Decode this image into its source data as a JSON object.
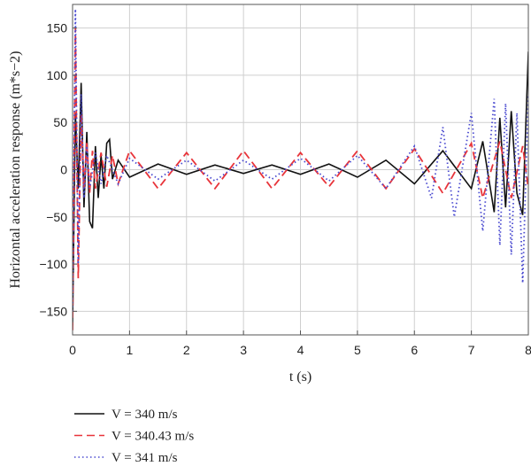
{
  "chart_data": {
    "type": "line",
    "title": "",
    "xlabel": "t (s)",
    "ylabel": "Horizontal acceleration response (m*s−2)",
    "xlim": [
      0,
      8
    ],
    "ylim": [
      -175,
      175
    ],
    "x_ticks": [
      "0",
      "1",
      "2",
      "3",
      "4",
      "5",
      "6",
      "7",
      "8"
    ],
    "y_ticks": [
      "−150",
      "−100",
      "−50",
      "0",
      "50",
      "100",
      "150"
    ],
    "y_tick_values": [
      -150,
      -100,
      -50,
      0,
      50,
      100,
      150
    ],
    "grid": true,
    "legend_position": "bottom-left, below plot",
    "series": [
      {
        "name": "V = 340 m/s",
        "color": "#111111",
        "style": "solid",
        "x": [
          0,
          0.05,
          0.1,
          0.15,
          0.2,
          0.25,
          0.3,
          0.35,
          0.4,
          0.45,
          0.5,
          0.55,
          0.6,
          0.65,
          0.7,
          0.8,
          1.0,
          1.5,
          2.0,
          2.5,
          3.0,
          3.5,
          4.0,
          4.5,
          5.0,
          5.5,
          6.0,
          6.5,
          7.0,
          7.2,
          7.4,
          7.5,
          7.6,
          7.7,
          7.8,
          7.9,
          8.0
        ],
        "values": [
          -165,
          60,
          -20,
          92,
          -40,
          40,
          -55,
          -62,
          25,
          -30,
          15,
          -20,
          28,
          32,
          -10,
          10,
          -8,
          6,
          -5,
          5,
          -4,
          5,
          -5,
          6,
          -8,
          10,
          -15,
          20,
          -20,
          30,
          -45,
          55,
          -40,
          62,
          -25,
          -48,
          125
        ]
      },
      {
        "name": "V = 340.43 m/s",
        "color": "#e8343a",
        "style": "dashed",
        "x": [
          0,
          0.05,
          0.1,
          0.15,
          0.2,
          0.25,
          0.3,
          0.35,
          0.4,
          0.5,
          0.6,
          0.7,
          0.8,
          1.0,
          1.5,
          2.0,
          2.5,
          3.0,
          3.5,
          4.0,
          4.5,
          5.0,
          5.5,
          6.0,
          6.5,
          7.0,
          7.2,
          7.5,
          7.7,
          7.9,
          8.0
        ],
        "values": [
          -170,
          150,
          -115,
          60,
          -20,
          30,
          -25,
          20,
          -20,
          18,
          -18,
          15,
          -15,
          20,
          -20,
          18,
          -20,
          20,
          -20,
          18,
          -18,
          20,
          -20,
          22,
          -25,
          28,
          -30,
          30,
          -30,
          25,
          -20
        ]
      },
      {
        "name": "V = 341 m/s",
        "color": "#4a4ad0",
        "style": "dotted",
        "x": [
          0,
          0.05,
          0.1,
          0.15,
          0.2,
          0.25,
          0.3,
          0.4,
          0.5,
          0.6,
          0.8,
          1.0,
          1.5,
          2.0,
          2.5,
          3.0,
          3.5,
          4.0,
          4.5,
          5.0,
          5.5,
          6.0,
          6.3,
          6.5,
          6.7,
          7.0,
          7.2,
          7.4,
          7.5,
          7.6,
          7.7,
          7.8,
          7.9,
          8.0
        ],
        "values": [
          -150,
          170,
          -100,
          80,
          -30,
          25,
          -20,
          18,
          -15,
          15,
          -15,
          12,
          -10,
          10,
          -12,
          10,
          -10,
          12,
          -12,
          15,
          -20,
          25,
          -30,
          45,
          -50,
          60,
          -65,
          75,
          -80,
          70,
          -90,
          60,
          -120,
          80
        ]
      }
    ]
  }
}
